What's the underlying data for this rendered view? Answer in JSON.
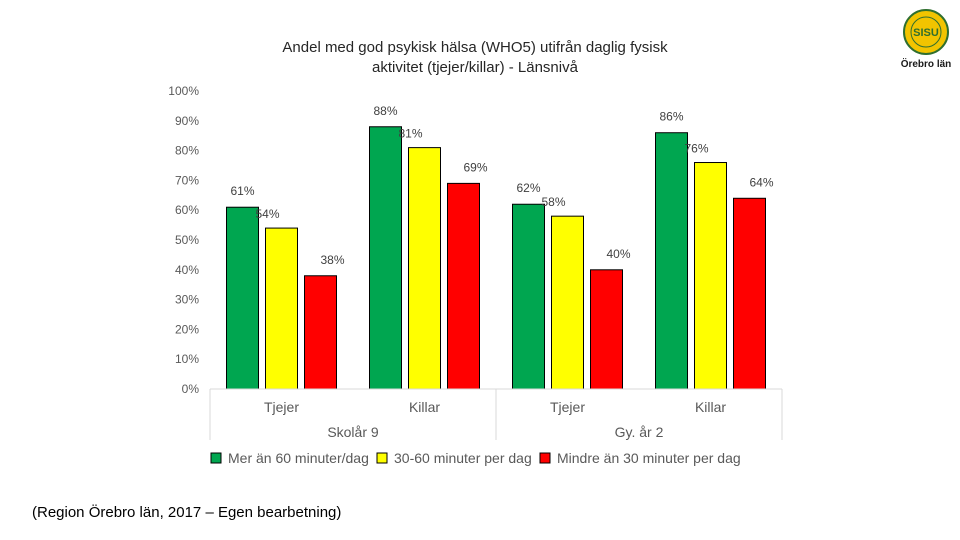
{
  "logo": {
    "inner_text": "SISU",
    "org_name": "Örebro län"
  },
  "source_note": "(Region Örebro län, 2017 – Egen bearbetning)",
  "chart_data": {
    "type": "bar",
    "title_lines": [
      "Andel med god psykisk hälsa (WHO5) utifrån daglig fysisk",
      "aktivitet (tjejer/killar) - Länsnivå"
    ],
    "ylim": [
      0,
      100
    ],
    "yticks": [
      0,
      10,
      20,
      30,
      40,
      50,
      60,
      70,
      80,
      90,
      100
    ],
    "ytick_labels": [
      "0%",
      "10%",
      "20%",
      "30%",
      "40%",
      "50%",
      "60%",
      "70%",
      "80%",
      "90%",
      "100%"
    ],
    "grid": false,
    "legend_position": "bottom",
    "groups": [
      {
        "label": "Skolår 9",
        "categories": [
          "Tjejer",
          "Killar"
        ]
      },
      {
        "label": "Gy. år 2",
        "categories": [
          "Tjejer",
          "Killar"
        ]
      }
    ],
    "categories": [
      "Tjejer",
      "Killar",
      "Tjejer",
      "Killar"
    ],
    "series": [
      {
        "name": "Mer än 60 minuter/dag",
        "color": "#00a650",
        "values": [
          61,
          88,
          62,
          86
        ],
        "labels": [
          "61%",
          "88%",
          "62%",
          "86%"
        ]
      },
      {
        "name": "30-60 minuter per dag",
        "color": "#ffff00",
        "values": [
          54,
          81,
          58,
          76
        ],
        "labels": [
          "54%",
          "81%",
          "58%",
          "76%"
        ]
      },
      {
        "name": "Mindre än 30 minuter per dag",
        "color": "#ff0000",
        "values": [
          38,
          69,
          40,
          64
        ],
        "labels": [
          "38%",
          "69%",
          "40%",
          "64%"
        ]
      }
    ]
  }
}
